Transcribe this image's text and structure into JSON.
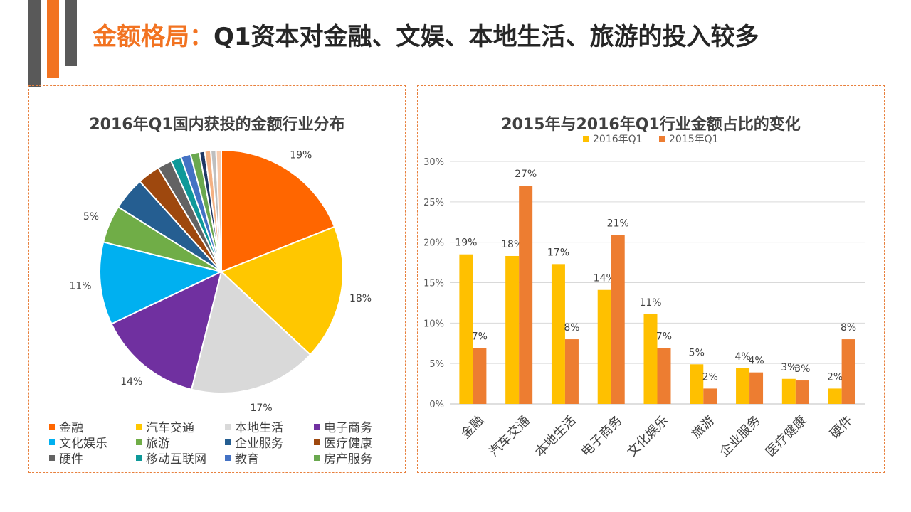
{
  "header": {
    "title_highlight": "金额格局：",
    "title_rest": "Q1资本对金融、文娱、本地生活、旅游的投入较多"
  },
  "colors": {
    "accent": "#f27321",
    "gray_bar": "#595959",
    "border": "#e8803d"
  },
  "chart_data": [
    {
      "type": "pie",
      "title": "2016年Q1国内获投的金额行业分布",
      "slices": [
        {
          "label": "金融",
          "value": 19,
          "data_label": "19%",
          "color": "#ff6600"
        },
        {
          "label": "汽车交通",
          "value": 18,
          "data_label": "18%",
          "color": "#ffc700"
        },
        {
          "label": "本地生活",
          "value": 17,
          "data_label": "17%",
          "color": "#d9d9d9"
        },
        {
          "label": "电子商务",
          "value": 14,
          "data_label": "14%",
          "color": "#7030a0"
        },
        {
          "label": "文化娱乐",
          "value": 11,
          "data_label": "11%",
          "color": "#00b0f0"
        },
        {
          "label": "旅游",
          "value": 5,
          "data_label": "5%",
          "color": "#70ad47"
        },
        {
          "label": "企业服务",
          "value": 4.4,
          "data_label": "",
          "color": "#255e91"
        },
        {
          "label": "医疗健康",
          "value": 3,
          "data_label": "",
          "color": "#9e480e"
        },
        {
          "label": "硬件",
          "value": 1.9,
          "data_label": "",
          "color": "#636363"
        },
        {
          "label": "移动互联网",
          "value": 1.4,
          "data_label": "",
          "color": "#0e9999"
        },
        {
          "label": "教育",
          "value": 1.3,
          "data_label": "",
          "color": "#4472c4"
        },
        {
          "label": "房产服务",
          "value": 1.2,
          "data_label": "",
          "color": "#6aa84f"
        },
        {
          "label": "",
          "value": 0.7,
          "data_label": "",
          "color": "#1f3864"
        },
        {
          "label": "",
          "value": 0.8,
          "data_label": "",
          "color": "#f4b183"
        },
        {
          "label": "",
          "value": 0.7,
          "data_label": "",
          "color": "#bfbfbf"
        },
        {
          "label": "",
          "value": 0.7,
          "data_label": "",
          "color": "#f8cbad"
        }
      ],
      "legend": [
        "金融",
        "汽车交通",
        "本地生活",
        "电子商务",
        "文化娱乐",
        "旅游",
        "企业服务",
        "医疗健康",
        "硬件",
        "移动互联网",
        "教育",
        "房产服务"
      ]
    },
    {
      "type": "bar",
      "title": "2015年与2016年Q1行业金额占比的变化",
      "categories": [
        "金融",
        "汽车交通",
        "本地生活",
        "电子商务",
        "文化娱乐",
        "旅游",
        "企业服务",
        "医疗健康",
        "硬件"
      ],
      "series": [
        {
          "name": "2016年Q1",
          "color": "#ffc000",
          "values": [
            18.5,
            18.3,
            17.3,
            14.1,
            11.1,
            4.9,
            4.4,
            3.1,
            1.9
          ],
          "labels": [
            "19%",
            "18%",
            "17%",
            "14%",
            "11%",
            "5%",
            "4%",
            "3%",
            "2%"
          ]
        },
        {
          "name": "2015年Q1",
          "color": "#ed7d31",
          "values": [
            6.9,
            27.0,
            8.0,
            20.9,
            6.9,
            1.9,
            3.9,
            2.9,
            8.0
          ],
          "labels": [
            "7%",
            "27%",
            "8%",
            "21%",
            "7%",
            "2%",
            "4%",
            "3%",
            "8%"
          ]
        }
      ],
      "yticks": [
        "0%",
        "5%",
        "10%",
        "15%",
        "20%",
        "25%",
        "30%"
      ],
      "ylim": [
        0,
        30
      ],
      "legend_position": "top"
    }
  ]
}
